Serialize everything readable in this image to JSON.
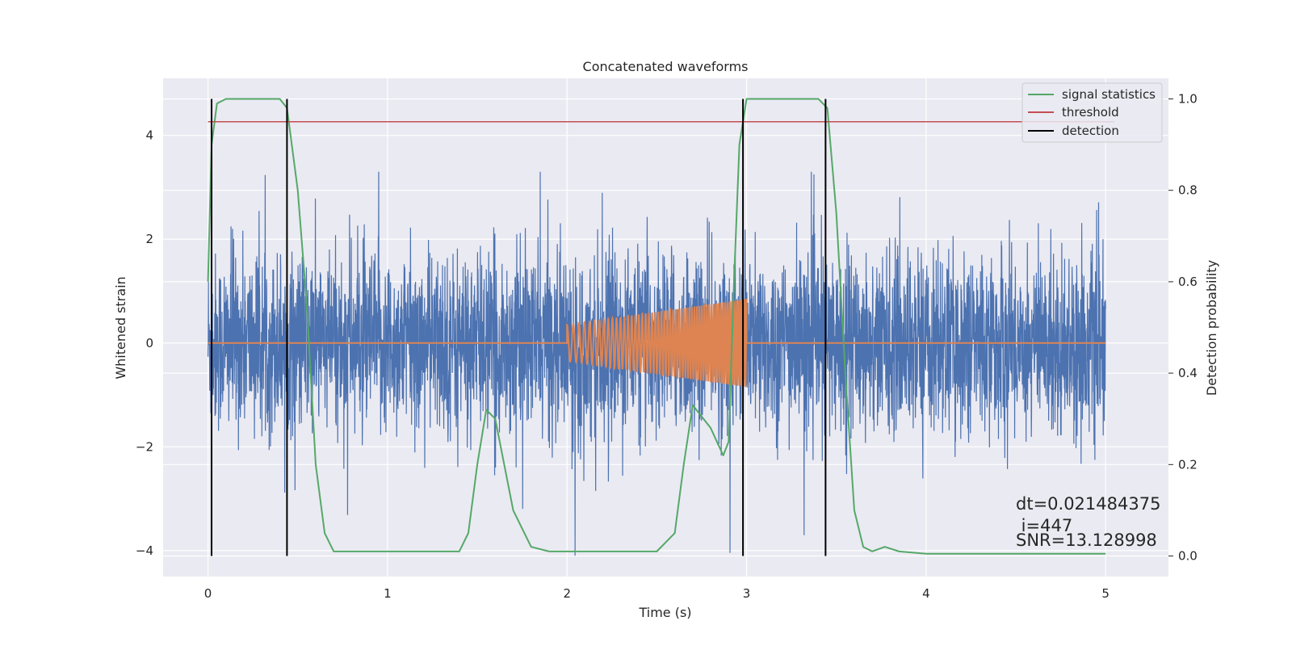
{
  "chart_data": {
    "type": "line",
    "title": "Concatenated waveforms",
    "xlabel": "Time (s)",
    "ylabel": "Whitened strain",
    "ylabel_right": "Detection probability",
    "xlim": [
      -0.25,
      5.35
    ],
    "ylim": [
      -4.5,
      5.1
    ],
    "ylim_right": [
      -0.045,
      1.045
    ],
    "x_ticks": [
      "0",
      "1",
      "2",
      "3",
      "4",
      "5"
    ],
    "y_ticks": [
      "4",
      "2",
      "0",
      "−2",
      "−4"
    ],
    "y_ticks_right": [
      "1.0",
      "0.8",
      "0.6",
      "0.4",
      "0.2",
      "0.0"
    ],
    "grid": true,
    "legend_position": "top-right",
    "legend": [
      {
        "label": "signal statistics",
        "color": "#55a868"
      },
      {
        "label": "threshold",
        "color": "#c44e52"
      },
      {
        "label": "detection",
        "color": "#000000"
      }
    ],
    "series": [
      {
        "color": "#4c72b0",
        "description_values": {
          "x_start": 0,
          "x_end": 5,
          "amplitude_typical": 1.2,
          "max": 3.3,
          "min": -4.1
        }
      },
      {
        "color": "#dd8452",
        "values": {
          "x_start": 2.0,
          "x_end": 3.0,
          "amp_start": 0.35,
          "amp_end": 0.85,
          "baseline": 0
        }
      },
      {
        "name": "signal statistics",
        "color": "#55a868",
        "x": [
          0.0,
          0.02,
          0.05,
          0.1,
          0.4,
          0.44,
          0.5,
          0.55,
          0.6,
          0.65,
          0.7,
          1.4,
          1.45,
          1.5,
          1.55,
          1.6,
          1.65,
          1.7,
          1.75,
          1.8,
          1.9,
          2.1,
          2.5,
          2.6,
          2.65,
          2.7,
          2.8,
          2.87,
          2.9,
          2.93,
          2.96,
          3.0,
          3.4,
          3.45,
          3.5,
          3.55,
          3.6,
          3.65,
          3.7,
          3.77,
          3.85,
          4.0,
          5.0
        ],
        "y": [
          0.6,
          0.9,
          0.99,
          1.0,
          1.0,
          0.98,
          0.8,
          0.55,
          0.2,
          0.05,
          0.01,
          0.01,
          0.05,
          0.2,
          0.32,
          0.3,
          0.2,
          0.1,
          0.06,
          0.02,
          0.01,
          0.01,
          0.01,
          0.05,
          0.2,
          0.33,
          0.28,
          0.22,
          0.25,
          0.6,
          0.9,
          1.0,
          1.0,
          0.98,
          0.75,
          0.4,
          0.1,
          0.02,
          0.01,
          0.02,
          0.01,
          0.005,
          0.005
        ]
      },
      {
        "name": "threshold",
        "color": "#c44e52",
        "x": [
          0,
          5.05
        ],
        "y": [
          0.95,
          0.95
        ]
      }
    ],
    "detections": [
      0.02,
      0.44,
      2.98,
      3.44
    ],
    "annotations": {
      "dt": "dt=0.021484375",
      "i": " i=447",
      "snr": "SNR=13.128998"
    }
  }
}
